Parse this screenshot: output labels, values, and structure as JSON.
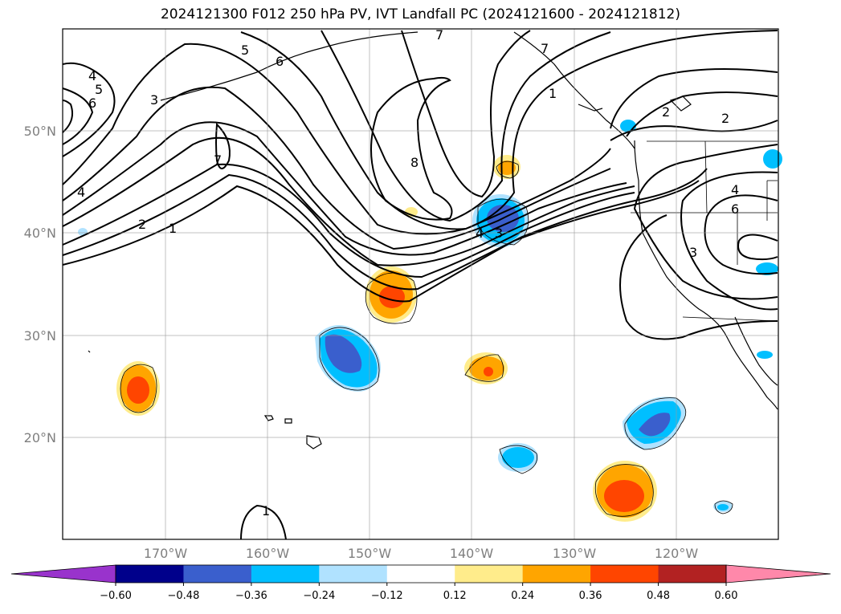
{
  "title": "2024121300 F012 250 hPa PV, IVT Landfall PC (2024121600 - 2024121812)",
  "map": {
    "lat_labels": [
      "50°N",
      "40°N",
      "30°N",
      "20°N"
    ],
    "lon_labels": [
      "170°W",
      "160°W",
      "150°W",
      "140°W",
      "130°W",
      "120°W"
    ],
    "contour_labels": [
      "7",
      "5",
      "6",
      "4",
      "5",
      "6",
      "3",
      "7",
      "4",
      "2",
      "1",
      "1",
      "8",
      "7",
      "4",
      "3",
      "2",
      "2",
      "4",
      "6",
      "3",
      "1"
    ]
  },
  "colorbar": {
    "ticks": [
      "−0.60",
      "−0.48",
      "−0.36",
      "−0.24",
      "−0.12",
      "0.12",
      "0.24",
      "0.36",
      "0.48",
      "0.60"
    ],
    "colors": [
      "#9933cc",
      "#00008b",
      "#3a5fcd",
      "#00bfff",
      "#b0e2ff",
      "#ffffff",
      "#ffec8b",
      "#ffa500",
      "#ff4500",
      "#b22222",
      "#ff88aa"
    ]
  }
}
